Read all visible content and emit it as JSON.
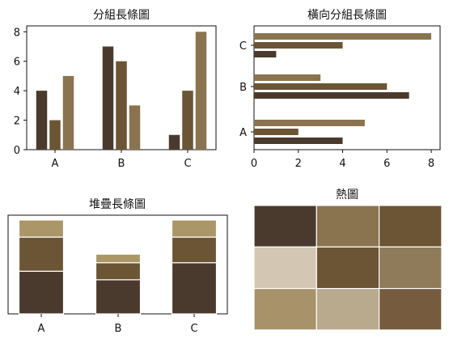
{
  "colors": {
    "dark": "#4a3a2d",
    "mid": "#6b5535",
    "light": "#8a7450",
    "stack_top": "#ab9668"
  },
  "chart_data": [
    {
      "type": "bar",
      "title": "分組長條圖",
      "categories": [
        "A",
        "B",
        "C"
      ],
      "series": [
        {
          "values": [
            4,
            7,
            1
          ]
        },
        {
          "values": [
            2,
            6,
            4
          ]
        },
        {
          "values": [
            5,
            3,
            8
          ]
        }
      ],
      "ylim": [
        0,
        8.4
      ],
      "yticks": [
        0,
        2,
        4,
        6,
        8
      ]
    },
    {
      "type": "bar",
      "orientation": "horizontal",
      "title": "橫向分組長條圖",
      "categories": [
        "A",
        "B",
        "C"
      ],
      "series": [
        {
          "values": [
            4,
            7,
            1
          ]
        },
        {
          "values": [
            2,
            6,
            4
          ]
        },
        {
          "values": [
            5,
            3,
            8
          ]
        }
      ],
      "xlim": [
        0,
        8.4
      ],
      "xticks": [
        0,
        2,
        4,
        6,
        8
      ]
    },
    {
      "type": "bar",
      "stacked": true,
      "title": "堆疊長條圖",
      "categories": [
        "A",
        "B",
        "C"
      ],
      "series": [
        {
          "values": [
            5,
            4,
            6
          ]
        },
        {
          "values": [
            4,
            2,
            3
          ]
        },
        {
          "values": [
            2,
            1,
            2
          ]
        }
      ]
    },
    {
      "type": "heatmap",
      "title": "熱圖",
      "rows": 3,
      "cols": 3,
      "cell_colors": [
        [
          "#4a3a2d",
          "#8a7450",
          "#6b5535"
        ],
        [
          "#d3c7b3",
          "#6b5535",
          "#8f7a5a"
        ],
        [
          "#a8926a",
          "#b9a98d",
          "#765b3e"
        ]
      ]
    }
  ]
}
